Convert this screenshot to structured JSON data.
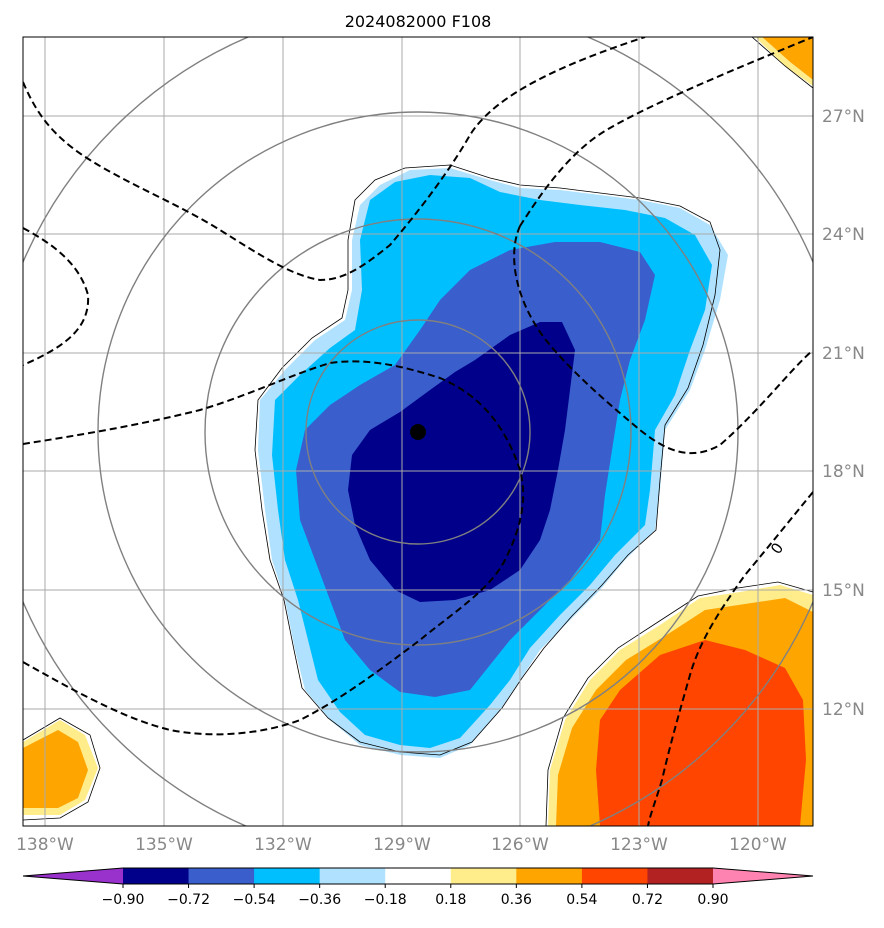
{
  "title": "2024082000 F108",
  "lon_ticks": [
    "138°W",
    "135°W",
    "132°W",
    "129°W",
    "126°W",
    "123°W",
    "120°W"
  ],
  "lat_ticks": [
    "27°N",
    "24°N",
    "21°N",
    "18°N",
    "15°N",
    "12°N"
  ],
  "contour_label": "0",
  "colorbar": {
    "tick_labels": [
      "−0.90",
      "−0.72",
      "−0.54",
      "−0.36",
      "−0.18",
      "0.18",
      "0.36",
      "0.54",
      "0.72",
      "0.90"
    ],
    "colors": [
      "#9932cc",
      "#00008b",
      "#3a5fcd",
      "#00bfff",
      "#b0e2ff",
      "#ffffff",
      "#ffec8b",
      "#ffa500",
      "#ff4500",
      "#b22222",
      "#ff83b0"
    ]
  },
  "colors": {
    "dark_blue": "#00008b",
    "royal_blue": "#3a5fcd",
    "deep_sky_blue": "#00bfff",
    "light_blue": "#b0e2ff",
    "light_yellow": "#ffec8b",
    "orange": "#ffa500",
    "orange_red": "#ff4500",
    "grid": "#aaaaaa",
    "ring": "#808080"
  }
}
